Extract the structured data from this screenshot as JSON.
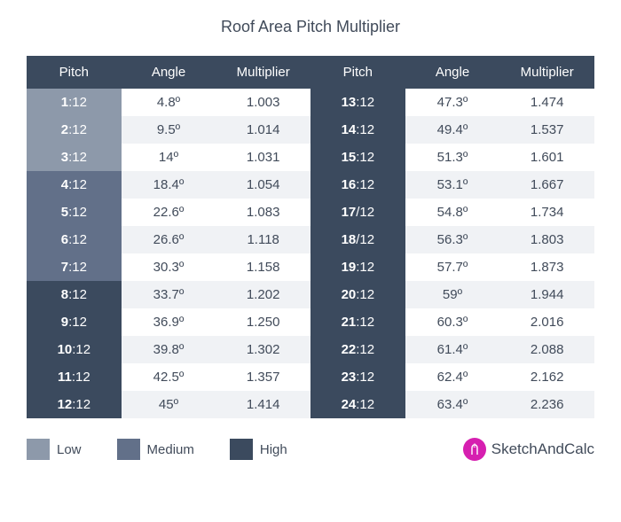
{
  "title": "Roof Area Pitch Multiplier",
  "columns": [
    "Pitch",
    "Angle",
    "Multiplier"
  ],
  "colors": {
    "low": "#8d99aa",
    "medium": "#627089",
    "high": "#3b4a5e",
    "header_bg": "#3b4a5e",
    "row_alt_bg": "#f0f2f5",
    "row_bg": "#ffffff",
    "text": "#414b5a",
    "brand_icon": "#d61fb0"
  },
  "legend": [
    {
      "label": "Low",
      "color": "#8d99aa"
    },
    {
      "label": "Medium",
      "color": "#627089"
    },
    {
      "label": "High",
      "color": "#3b4a5e"
    }
  ],
  "brand": "SketchAndCalc",
  "left_rows": [
    {
      "pitch_n": "1",
      "pitch_sep": ":",
      "pitch_d": "12",
      "angle": "4.8º",
      "mult": "1.003",
      "level": "low"
    },
    {
      "pitch_n": "2",
      "pitch_sep": ":",
      "pitch_d": "12",
      "angle": "9.5º",
      "mult": "1.014",
      "level": "low"
    },
    {
      "pitch_n": "3",
      "pitch_sep": ":",
      "pitch_d": "12",
      "angle": "14º",
      "mult": "1.031",
      "level": "low"
    },
    {
      "pitch_n": "4",
      "pitch_sep": ":",
      "pitch_d": "12",
      "angle": "18.4º",
      "mult": "1.054",
      "level": "medium"
    },
    {
      "pitch_n": "5",
      "pitch_sep": ":",
      "pitch_d": "12",
      "angle": "22.6º",
      "mult": "1.083",
      "level": "medium"
    },
    {
      "pitch_n": "6",
      "pitch_sep": ":",
      "pitch_d": "12",
      "angle": "26.6º",
      "mult": "1.118",
      "level": "medium"
    },
    {
      "pitch_n": "7",
      "pitch_sep": ":",
      "pitch_d": "12",
      "angle": "30.3º",
      "mult": "1.158",
      "level": "medium"
    },
    {
      "pitch_n": "8",
      "pitch_sep": ":",
      "pitch_d": "12",
      "angle": "33.7º",
      "mult": "1.202",
      "level": "high"
    },
    {
      "pitch_n": "9",
      "pitch_sep": ":",
      "pitch_d": "12",
      "angle": "36.9º",
      "mult": "1.250",
      "level": "high"
    },
    {
      "pitch_n": "10",
      "pitch_sep": ":",
      "pitch_d": "12",
      "angle": "39.8º",
      "mult": "1.302",
      "level": "high"
    },
    {
      "pitch_n": "11",
      "pitch_sep": ":",
      "pitch_d": "12",
      "angle": "42.5º",
      "mult": "1.357",
      "level": "high"
    },
    {
      "pitch_n": "12",
      "pitch_sep": ":",
      "pitch_d": "12",
      "angle": "45º",
      "mult": "1.414",
      "level": "high"
    }
  ],
  "right_rows": [
    {
      "pitch_n": "13",
      "pitch_sep": ":",
      "pitch_d": "12",
      "angle": "47.3º",
      "mult": "1.474",
      "level": "high"
    },
    {
      "pitch_n": "14",
      "pitch_sep": ":",
      "pitch_d": "12",
      "angle": "49.4º",
      "mult": "1.537",
      "level": "high"
    },
    {
      "pitch_n": "15",
      "pitch_sep": ":",
      "pitch_d": "12",
      "angle": "51.3º",
      "mult": "1.601",
      "level": "high"
    },
    {
      "pitch_n": "16",
      "pitch_sep": ":",
      "pitch_d": "12",
      "angle": "53.1º",
      "mult": "1.667",
      "level": "high"
    },
    {
      "pitch_n": "17",
      "pitch_sep": "/",
      "pitch_d": "12",
      "angle": "54.8º",
      "mult": "1.734",
      "level": "high"
    },
    {
      "pitch_n": "18",
      "pitch_sep": "/",
      "pitch_d": "12",
      "angle": "56.3º",
      "mult": "1.803",
      "level": "high"
    },
    {
      "pitch_n": "19",
      "pitch_sep": ":",
      "pitch_d": "12",
      "angle": "57.7º",
      "mult": "1.873",
      "level": "high"
    },
    {
      "pitch_n": "20",
      "pitch_sep": ":",
      "pitch_d": "12",
      "angle": "59º",
      "mult": "1.944",
      "level": "high"
    },
    {
      "pitch_n": "21",
      "pitch_sep": ":",
      "pitch_d": "12",
      "angle": "60.3º",
      "mult": "2.016",
      "level": "high"
    },
    {
      "pitch_n": "22",
      "pitch_sep": ":",
      "pitch_d": "12",
      "angle": "61.4º",
      "mult": "2.088",
      "level": "high"
    },
    {
      "pitch_n": "23",
      "pitch_sep": ":",
      "pitch_d": "12",
      "angle": "62.4º",
      "mult": "2.162",
      "level": "high"
    },
    {
      "pitch_n": "24",
      "pitch_sep": ":",
      "pitch_d": "12",
      "angle": "63.4º",
      "mult": "2.236",
      "level": "high"
    }
  ]
}
